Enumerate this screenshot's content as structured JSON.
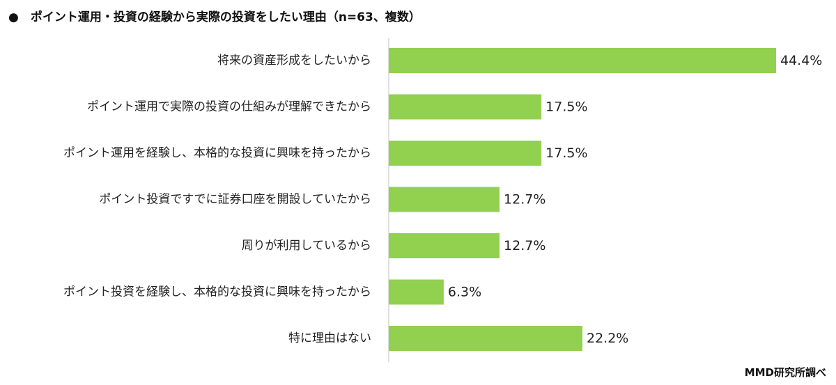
{
  "chart_data": {
    "type": "bar",
    "orientation": "horizontal",
    "title": "●　ポイント運用・投資の経験から実際の投資をしたい理由（n=63、複数）",
    "categories": [
      "将来の資産形成をしたいから",
      "ポイント運用で実際の投資の仕組みが理解できたから",
      "ポイント運用を経験し、本格的な投資に興味を持ったから",
      "ポイント投資ですでに証券口座を開設していたから",
      "周りが利用しているから",
      "ポイント投資を経験し、本格的な投資に興味を持ったから",
      "特に理由はない"
    ],
    "values": [
      44.4,
      17.5,
      17.5,
      12.7,
      12.7,
      6.3,
      22.2
    ],
    "value_labels": [
      "44.4%",
      "17.5%",
      "17.5%",
      "12.7%",
      "12.7%",
      "6.3%",
      "22.2%"
    ],
    "unit": "%",
    "xlim": [
      0,
      44.4
    ],
    "grid": false,
    "xlabel": "",
    "ylabel": ""
  },
  "colors": {
    "bar": "#92d050",
    "axis": "#bfbfbf"
  },
  "source": "MMD研究所調べ"
}
